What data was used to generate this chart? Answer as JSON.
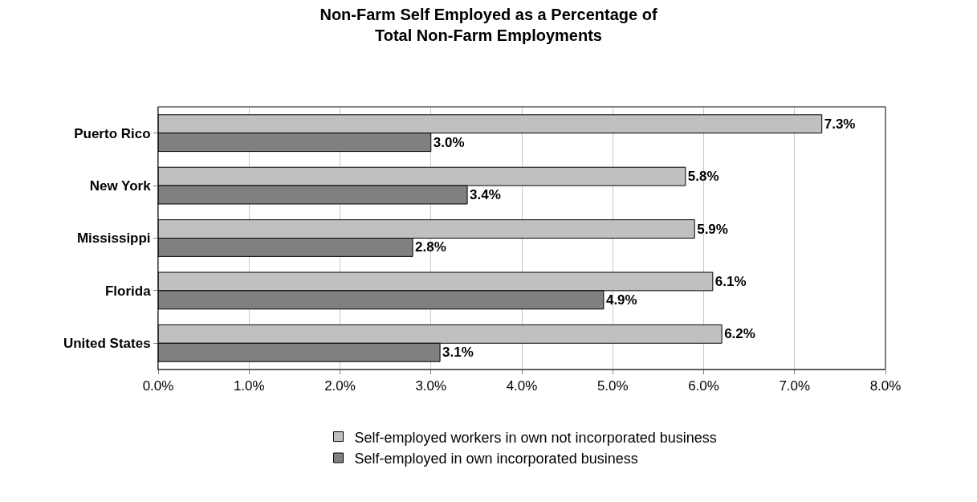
{
  "chart_data": {
    "type": "bar",
    "orientation": "horizontal",
    "title": "Non-Farm Self Employed as a Percentage of\nTotal Non-Farm Employments",
    "categories": [
      "Puerto Rico",
      "New York",
      "Mississippi",
      "Florida",
      "United States"
    ],
    "series": [
      {
        "name": "Self-employed workers in own not incorporated business",
        "color": "#c0c0c0",
        "values": [
          7.3,
          5.8,
          5.9,
          6.1,
          6.2
        ],
        "value_labels": [
          "7.3%",
          "5.8%",
          "5.9%",
          "6.1%",
          "6.2%"
        ]
      },
      {
        "name": "Self-employed in own incorporated business",
        "color": "#808080",
        "values": [
          3.0,
          3.4,
          2.8,
          4.9,
          3.1
        ],
        "value_labels": [
          "3.0%",
          "3.4%",
          "2.8%",
          "4.9%",
          "3.1%"
        ]
      }
    ],
    "xlim": [
      0,
      8
    ],
    "xticks": [
      {
        "value": 0,
        "label": "0.0%"
      },
      {
        "value": 1,
        "label": "1.0%"
      },
      {
        "value": 2,
        "label": "2.0%"
      },
      {
        "value": 3,
        "label": "3.0%"
      },
      {
        "value": 4,
        "label": "4.0%"
      },
      {
        "value": 5,
        "label": "5.0%"
      },
      {
        "value": 6,
        "label": "6.0%"
      },
      {
        "value": 7,
        "label": "7.0%"
      },
      {
        "value": 8,
        "label": "8.0%"
      }
    ],
    "grid": "x",
    "legend": "bottom"
  }
}
